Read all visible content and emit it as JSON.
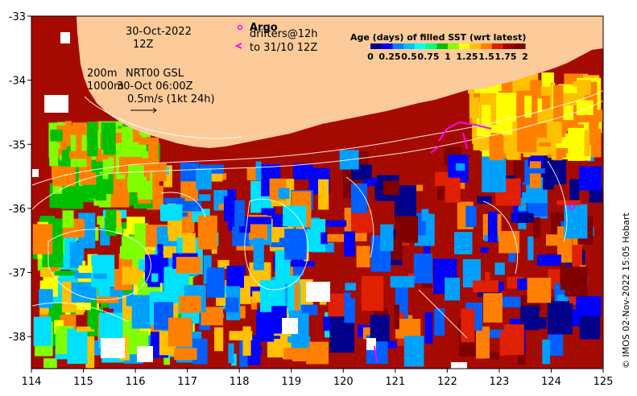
{
  "map": {
    "x_ticks": [
      "114",
      "115",
      "116",
      "117",
      "118",
      "119",
      "120",
      "121",
      "122",
      "123",
      "124",
      "125"
    ],
    "y_ticks": [
      "-33",
      "-34",
      "-35",
      "-36",
      "-37",
      "-38"
    ],
    "lon_range": [
      114,
      125
    ],
    "lat_range": [
      -38.5,
      -33
    ]
  },
  "annotations": {
    "date": "30-Oct-2022",
    "hour": "12Z",
    "argo_label": "Argo",
    "drifters_label": "drifters@12h",
    "drifters_sub": "to 31/10 12Z",
    "contour_200": "200m",
    "contour_1000": "1000m",
    "product": "NRT00 GSL",
    "product_time": "30-Oct 06:00Z",
    "scale_label": "0.5m/s (1kt 24h)"
  },
  "colorbar": {
    "title": "Age (days) of filled SST (wrt latest)",
    "labels": [
      "0",
      "0.25",
      "0.5",
      "0.75",
      "1",
      "1.25",
      "1.5",
      "1.75",
      "2"
    ],
    "colors": [
      "#00008b",
      "#0000ff",
      "#0080ff",
      "#00c0ff",
      "#00ffff",
      "#00ff80",
      "#00c000",
      "#80ff00",
      "#ffff00",
      "#ffc000",
      "#ff8000",
      "#e02000",
      "#a00000",
      "#800000"
    ]
  },
  "credit": "© IMOS 02-Nov-2022 15:05 Hobart",
  "colors": {
    "land": "#fdcb9a",
    "age_old": "#a50a00",
    "accent_magenta": "#ff00ff"
  }
}
